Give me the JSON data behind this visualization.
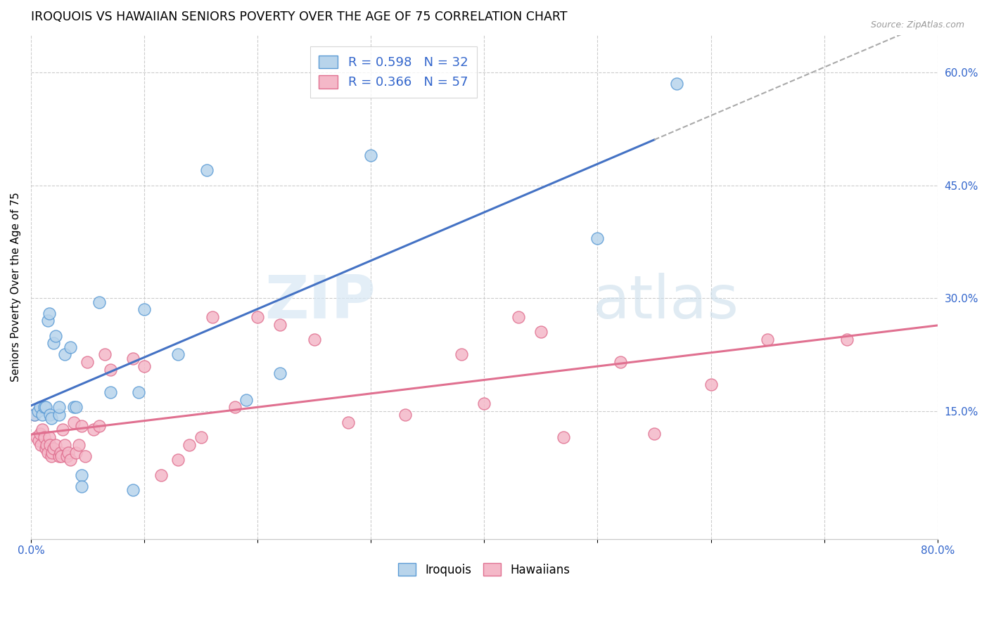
{
  "title": "IROQUOIS VS HAWAIIAN SENIORS POVERTY OVER THE AGE OF 75 CORRELATION CHART",
  "source": "Source: ZipAtlas.com",
  "ylabel": "Seniors Poverty Over the Age of 75",
  "xlim": [
    0.0,
    0.8
  ],
  "ylim": [
    -0.02,
    0.65
  ],
  "x_ticks": [
    0.0,
    0.1,
    0.2,
    0.3,
    0.4,
    0.5,
    0.6,
    0.7,
    0.8
  ],
  "x_tick_labels": [
    "0.0%",
    "",
    "",
    "",
    "",
    "",
    "",
    "",
    "80.0%"
  ],
  "y_ticks_right": [
    0.15,
    0.3,
    0.45,
    0.6
  ],
  "y_tick_labels_right": [
    "15.0%",
    "30.0%",
    "45.0%",
    "60.0%"
  ],
  "iroquois_color": "#b8d4eb",
  "iroquois_edge": "#5b9bd5",
  "hawaiians_color": "#f4b8c8",
  "hawaiians_edge": "#e07090",
  "trend_iroquois_color": "#4472c4",
  "trend_hawaiians_color": "#e07090",
  "trend_dashed_color": "#aaaaaa",
  "R_iroquois": 0.598,
  "N_iroquois": 32,
  "R_hawaiians": 0.366,
  "N_hawaiians": 57,
  "watermark_zip": "ZIP",
  "watermark_atlas": "atlas",
  "iroquois_x": [
    0.003,
    0.006,
    0.008,
    0.01,
    0.012,
    0.013,
    0.015,
    0.016,
    0.017,
    0.018,
    0.02,
    0.022,
    0.025,
    0.025,
    0.03,
    0.035,
    0.038,
    0.04,
    0.045,
    0.045,
    0.06,
    0.07,
    0.09,
    0.095,
    0.1,
    0.13,
    0.155,
    0.19,
    0.22,
    0.3,
    0.5,
    0.57
  ],
  "iroquois_y": [
    0.145,
    0.15,
    0.155,
    0.145,
    0.155,
    0.155,
    0.27,
    0.28,
    0.145,
    0.14,
    0.24,
    0.25,
    0.145,
    0.155,
    0.225,
    0.235,
    0.155,
    0.155,
    0.065,
    0.05,
    0.295,
    0.175,
    0.045,
    0.175,
    0.285,
    0.225,
    0.47,
    0.165,
    0.2,
    0.49,
    0.38,
    0.585
  ],
  "hawaiians_x": [
    0.003,
    0.005,
    0.007,
    0.008,
    0.009,
    0.01,
    0.012,
    0.013,
    0.014,
    0.015,
    0.016,
    0.017,
    0.018,
    0.019,
    0.02,
    0.022,
    0.025,
    0.026,
    0.027,
    0.028,
    0.03,
    0.032,
    0.033,
    0.035,
    0.038,
    0.04,
    0.042,
    0.045,
    0.048,
    0.05,
    0.055,
    0.06,
    0.065,
    0.07,
    0.09,
    0.1,
    0.115,
    0.13,
    0.14,
    0.15,
    0.16,
    0.18,
    0.2,
    0.22,
    0.25,
    0.28,
    0.33,
    0.38,
    0.4,
    0.43,
    0.45,
    0.47,
    0.52,
    0.55,
    0.6,
    0.65,
    0.72
  ],
  "hawaiians_y": [
    0.145,
    0.115,
    0.11,
    0.12,
    0.105,
    0.125,
    0.115,
    0.1,
    0.105,
    0.095,
    0.115,
    0.105,
    0.09,
    0.095,
    0.1,
    0.105,
    0.09,
    0.095,
    0.09,
    0.125,
    0.105,
    0.09,
    0.095,
    0.085,
    0.135,
    0.095,
    0.105,
    0.13,
    0.09,
    0.215,
    0.125,
    0.13,
    0.225,
    0.205,
    0.22,
    0.21,
    0.065,
    0.085,
    0.105,
    0.115,
    0.275,
    0.155,
    0.275,
    0.265,
    0.245,
    0.135,
    0.145,
    0.225,
    0.16,
    0.275,
    0.255,
    0.115,
    0.215,
    0.12,
    0.185,
    0.245,
    0.245
  ],
  "trend_iroquois_solid_end": 0.55,
  "trend_iroquois_dashed_start": 0.55
}
